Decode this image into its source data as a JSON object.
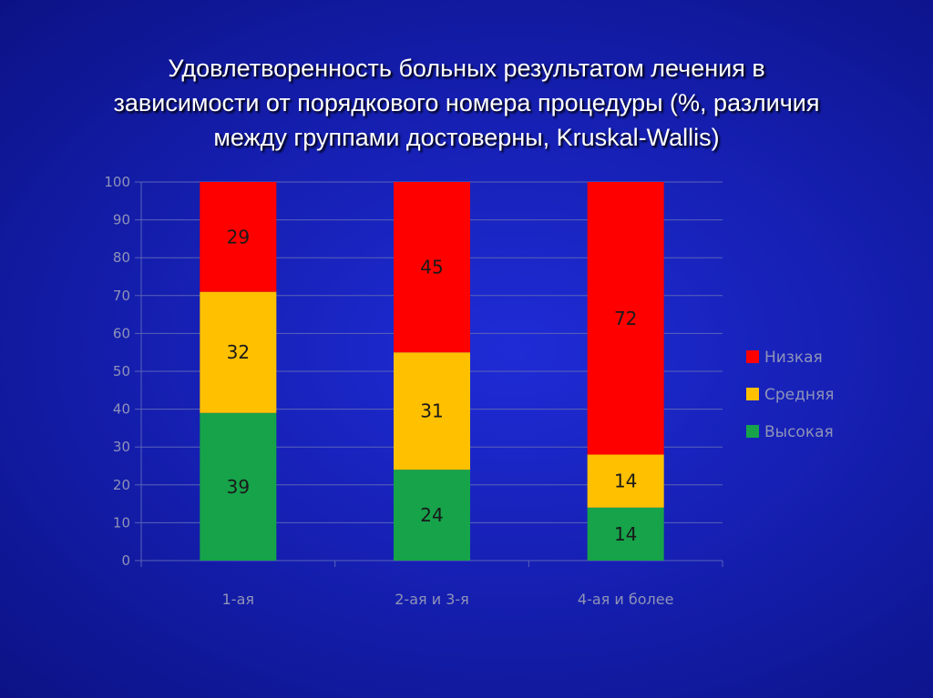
{
  "slide": {
    "title_lines": [
      "Удовлетворенность больных результатом лечения в",
      "зависимости от порядкового номера процедуры (%, различия",
      "между группами достоверны, Kruskal-Wallis)"
    ]
  },
  "chart_data": {
    "type": "bar",
    "stacked": true,
    "title": "Удовлетворенность больных результатом лечения в зависимости от порядкового номера процедуры (%, различия между группами достоверны, Kruskal-Wallis)",
    "xlabel": "",
    "ylabel": "",
    "ylim": [
      0,
      100
    ],
    "yticks": [
      0,
      10,
      20,
      30,
      40,
      50,
      60,
      70,
      80,
      90,
      100
    ],
    "grid": true,
    "legend_position": "right",
    "categories": [
      "1-ая",
      "2-ая и 3-я",
      "4-ая и более"
    ],
    "series": [
      {
        "name": "Высокая",
        "color": "#16a34a",
        "values": [
          39,
          24,
          14
        ]
      },
      {
        "name": "Средняя",
        "color": "#ffc000",
        "values": [
          32,
          31,
          14
        ]
      },
      {
        "name": "Низкая",
        "color": "#ff0000",
        "values": [
          29,
          45,
          72
        ]
      }
    ],
    "legend_order": [
      "Низкая",
      "Средняя",
      "Высокая"
    ]
  }
}
